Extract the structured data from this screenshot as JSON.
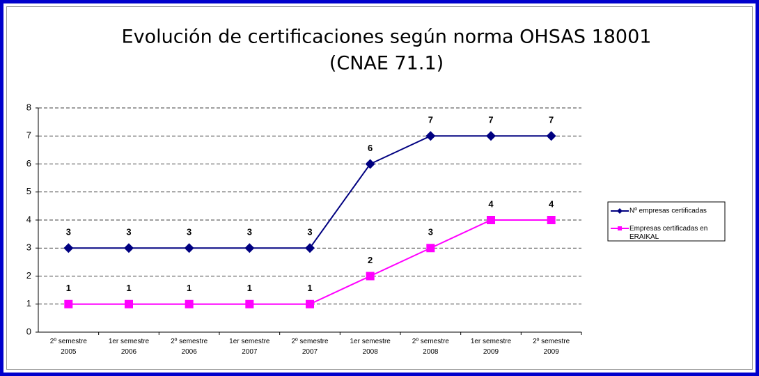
{
  "chart_data": {
    "type": "line",
    "title": [
      "Evolución de certificaciones según norma OHSAS 18001",
      "(CNAE 71.1)"
    ],
    "categories": [
      "2º semestre 2005",
      "1er semestre 2006",
      "2º semestre 2006",
      "1er semestre 2007",
      "2º semestre 2007",
      "1er semestre 2008",
      "2º semestre 2008",
      "1er semestre 2009",
      "2º semestre 2009"
    ],
    "series": [
      {
        "name": "Nº empresas certificadas",
        "color": "#000080",
        "marker": "diamond",
        "values": [
          3,
          3,
          3,
          3,
          3,
          6,
          7,
          7,
          7
        ]
      },
      {
        "name": "Empresas certificadas en ERAIKAL",
        "color": "#ff00ff",
        "marker": "square",
        "values": [
          1,
          1,
          1,
          1,
          1,
          2,
          3,
          4,
          4
        ]
      }
    ],
    "ylim": [
      0,
      8
    ],
    "yticks": [
      0,
      1,
      2,
      3,
      4,
      5,
      6,
      7,
      8
    ],
    "grid": true,
    "legend": "right"
  }
}
